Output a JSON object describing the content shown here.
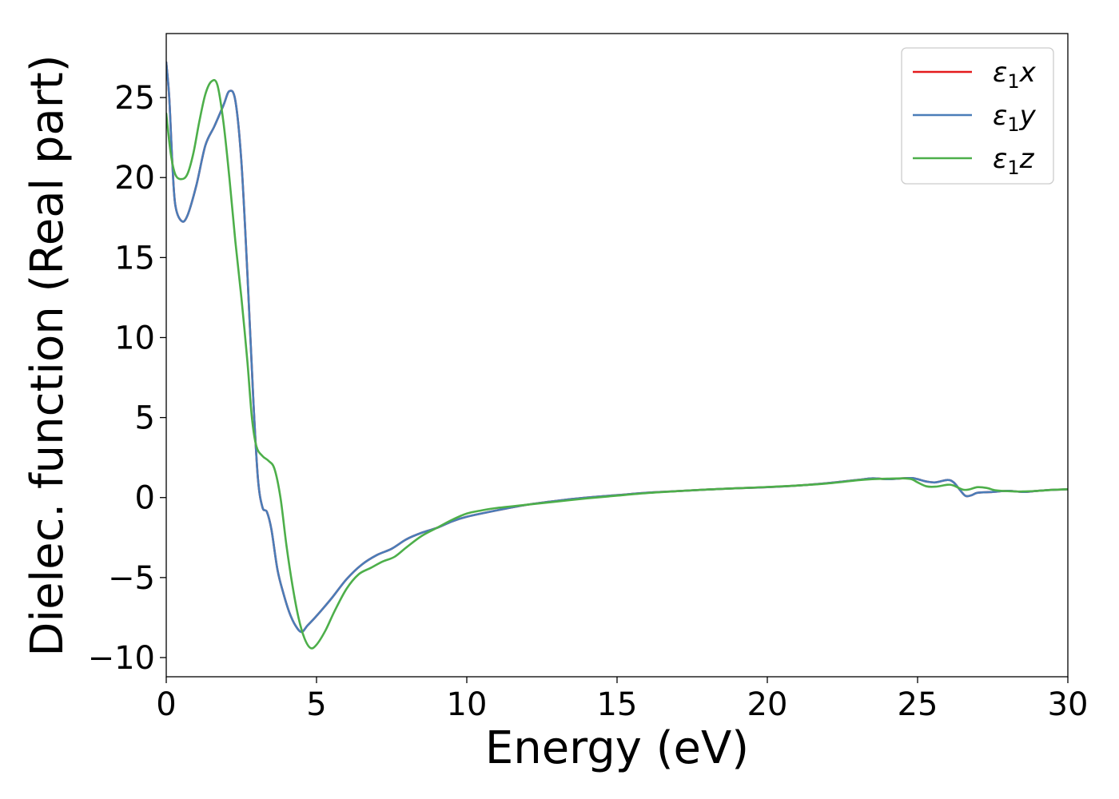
{
  "chart_data": {
    "type": "line",
    "xlabel": "Energy (eV)",
    "ylabel": "Dielec. function (Real part)",
    "xlim": [
      0,
      30
    ],
    "ylim": [
      -11.2,
      29.0
    ],
    "xticks": [
      {
        "value": 0,
        "label": "0"
      },
      {
        "value": 5,
        "label": "5"
      },
      {
        "value": 10,
        "label": "10"
      },
      {
        "value": 15,
        "label": "15"
      },
      {
        "value": 20,
        "label": "20"
      },
      {
        "value": 25,
        "label": "25"
      },
      {
        "value": 30,
        "label": "30"
      }
    ],
    "yticks": [
      {
        "value": -10,
        "label": "−10"
      },
      {
        "value": -5,
        "label": "−5"
      },
      {
        "value": 0,
        "label": "0"
      },
      {
        "value": 5,
        "label": "5"
      },
      {
        "value": 10,
        "label": "10"
      },
      {
        "value": 15,
        "label": "15"
      },
      {
        "value": 20,
        "label": "20"
      },
      {
        "value": 25,
        "label": "25"
      }
    ],
    "grid": false,
    "legend": "top-right",
    "series": [
      {
        "name": "ε₁x",
        "legend_base": "ε",
        "legend_sub": "1",
        "legend_suffix": "x",
        "color": "#e41a1c",
        "points": [
          [
            0,
            27.2
          ],
          [
            0.1,
            25
          ],
          [
            0.2,
            21
          ],
          [
            0.3,
            18.3
          ],
          [
            0.5,
            17.3
          ],
          [
            0.7,
            17.6
          ],
          [
            1.0,
            19.5
          ],
          [
            1.3,
            22
          ],
          [
            1.6,
            23.2
          ],
          [
            1.9,
            24.5
          ],
          [
            2.1,
            25.4
          ],
          [
            2.3,
            24.8
          ],
          [
            2.5,
            21
          ],
          [
            2.7,
            14
          ],
          [
            2.9,
            6
          ],
          [
            3.05,
            1.2
          ],
          [
            3.2,
            -0.6
          ],
          [
            3.35,
            -0.9
          ],
          [
            3.5,
            -2
          ],
          [
            3.7,
            -4.5
          ],
          [
            3.9,
            -6
          ],
          [
            4.1,
            -7.2
          ],
          [
            4.3,
            -8
          ],
          [
            4.5,
            -8.4
          ],
          [
            4.7,
            -8
          ],
          [
            5.0,
            -7.4
          ],
          [
            5.5,
            -6.3
          ],
          [
            6.0,
            -5.1
          ],
          [
            6.5,
            -4.2
          ],
          [
            7.0,
            -3.6
          ],
          [
            7.5,
            -3.2
          ],
          [
            8.0,
            -2.6
          ],
          [
            8.5,
            -2.2
          ],
          [
            9.0,
            -1.9
          ],
          [
            9.5,
            -1.5
          ],
          [
            10,
            -1.2
          ],
          [
            11,
            -0.8
          ],
          [
            12,
            -0.45
          ],
          [
            13,
            -0.2
          ],
          [
            14,
            0
          ],
          [
            15,
            0.15
          ],
          [
            16,
            0.3
          ],
          [
            17,
            0.4
          ],
          [
            18,
            0.5
          ],
          [
            19,
            0.58
          ],
          [
            20,
            0.65
          ],
          [
            21,
            0.75
          ],
          [
            22,
            0.9
          ],
          [
            23,
            1.1
          ],
          [
            23.5,
            1.2
          ],
          [
            24,
            1.15
          ],
          [
            24.5,
            1.2
          ],
          [
            24.8,
            1.22
          ],
          [
            25.0,
            1.15
          ],
          [
            25.3,
            1.0
          ],
          [
            25.6,
            0.95
          ],
          [
            26.0,
            1.1
          ],
          [
            26.2,
            0.95
          ],
          [
            26.4,
            0.5
          ],
          [
            26.6,
            0.1
          ],
          [
            26.8,
            0.15
          ],
          [
            27.0,
            0.3
          ],
          [
            27.5,
            0.35
          ],
          [
            28.0,
            0.42
          ],
          [
            28.5,
            0.35
          ],
          [
            29,
            0.42
          ],
          [
            29.5,
            0.48
          ],
          [
            30,
            0.52
          ]
        ]
      },
      {
        "name": "ε₁y",
        "legend_base": "ε",
        "legend_sub": "1",
        "legend_suffix": "y",
        "color": "#4a7db8",
        "points": [
          [
            0,
            27.2
          ],
          [
            0.1,
            25
          ],
          [
            0.2,
            21
          ],
          [
            0.3,
            18.3
          ],
          [
            0.5,
            17.3
          ],
          [
            0.7,
            17.6
          ],
          [
            1.0,
            19.5
          ],
          [
            1.3,
            22
          ],
          [
            1.6,
            23.2
          ],
          [
            1.9,
            24.5
          ],
          [
            2.1,
            25.4
          ],
          [
            2.3,
            24.8
          ],
          [
            2.5,
            21
          ],
          [
            2.7,
            14
          ],
          [
            2.9,
            6
          ],
          [
            3.05,
            1.2
          ],
          [
            3.2,
            -0.6
          ],
          [
            3.35,
            -0.9
          ],
          [
            3.5,
            -2
          ],
          [
            3.7,
            -4.5
          ],
          [
            3.9,
            -6
          ],
          [
            4.1,
            -7.2
          ],
          [
            4.3,
            -8
          ],
          [
            4.5,
            -8.4
          ],
          [
            4.7,
            -8
          ],
          [
            5.0,
            -7.4
          ],
          [
            5.5,
            -6.3
          ],
          [
            6.0,
            -5.1
          ],
          [
            6.5,
            -4.2
          ],
          [
            7.0,
            -3.6
          ],
          [
            7.5,
            -3.2
          ],
          [
            8.0,
            -2.6
          ],
          [
            8.5,
            -2.2
          ],
          [
            9.0,
            -1.9
          ],
          [
            9.5,
            -1.5
          ],
          [
            10,
            -1.2
          ],
          [
            11,
            -0.8
          ],
          [
            12,
            -0.45
          ],
          [
            13,
            -0.2
          ],
          [
            14,
            0
          ],
          [
            15,
            0.15
          ],
          [
            16,
            0.3
          ],
          [
            17,
            0.4
          ],
          [
            18,
            0.5
          ],
          [
            19,
            0.58
          ],
          [
            20,
            0.65
          ],
          [
            21,
            0.75
          ],
          [
            22,
            0.9
          ],
          [
            23,
            1.1
          ],
          [
            23.5,
            1.2
          ],
          [
            24,
            1.15
          ],
          [
            24.5,
            1.2
          ],
          [
            24.8,
            1.22
          ],
          [
            25.0,
            1.15
          ],
          [
            25.3,
            1.0
          ],
          [
            25.6,
            0.95
          ],
          [
            26.0,
            1.1
          ],
          [
            26.2,
            0.95
          ],
          [
            26.4,
            0.5
          ],
          [
            26.6,
            0.1
          ],
          [
            26.8,
            0.15
          ],
          [
            27.0,
            0.3
          ],
          [
            27.5,
            0.35
          ],
          [
            28.0,
            0.42
          ],
          [
            28.5,
            0.35
          ],
          [
            29,
            0.42
          ],
          [
            29.5,
            0.48
          ],
          [
            30,
            0.52
          ]
        ]
      },
      {
        "name": "ε₁z",
        "legend_base": "ε",
        "legend_sub": "1",
        "legend_suffix": "z",
        "color": "#4daf4a",
        "points": [
          [
            0,
            24
          ],
          [
            0.15,
            21.5
          ],
          [
            0.3,
            20.2
          ],
          [
            0.5,
            19.9
          ],
          [
            0.7,
            20.2
          ],
          [
            0.9,
            21.5
          ],
          [
            1.1,
            23.5
          ],
          [
            1.3,
            25.2
          ],
          [
            1.5,
            26
          ],
          [
            1.7,
            25.8
          ],
          [
            1.9,
            23.5
          ],
          [
            2.1,
            20
          ],
          [
            2.3,
            16
          ],
          [
            2.5,
            12.5
          ],
          [
            2.7,
            8.5
          ],
          [
            2.85,
            5
          ],
          [
            3.0,
            3.2
          ],
          [
            3.2,
            2.6
          ],
          [
            3.4,
            2.3
          ],
          [
            3.6,
            1.8
          ],
          [
            3.8,
            0
          ],
          [
            4.0,
            -3
          ],
          [
            4.2,
            -5.5
          ],
          [
            4.4,
            -7.5
          ],
          [
            4.6,
            -8.8
          ],
          [
            4.8,
            -9.4
          ],
          [
            5.0,
            -9.2
          ],
          [
            5.3,
            -8.3
          ],
          [
            5.6,
            -7.1
          ],
          [
            6.0,
            -5.7
          ],
          [
            6.4,
            -4.8
          ],
          [
            6.8,
            -4.4
          ],
          [
            7.2,
            -4
          ],
          [
            7.6,
            -3.7
          ],
          [
            8.0,
            -3.1
          ],
          [
            8.5,
            -2.4
          ],
          [
            9.0,
            -1.9
          ],
          [
            9.5,
            -1.4
          ],
          [
            10,
            -1.0
          ],
          [
            10.5,
            -0.8
          ],
          [
            11,
            -0.65
          ],
          [
            12,
            -0.45
          ],
          [
            13,
            -0.25
          ],
          [
            14,
            -0.05
          ],
          [
            15,
            0.12
          ],
          [
            16,
            0.28
          ],
          [
            17,
            0.4
          ],
          [
            18,
            0.5
          ],
          [
            19,
            0.58
          ],
          [
            20,
            0.66
          ],
          [
            21,
            0.75
          ],
          [
            22,
            0.88
          ],
          [
            23,
            1.08
          ],
          [
            23.5,
            1.15
          ],
          [
            24,
            1.18
          ],
          [
            24.5,
            1.2
          ],
          [
            24.8,
            1.15
          ],
          [
            25.0,
            0.95
          ],
          [
            25.3,
            0.7
          ],
          [
            25.6,
            0.68
          ],
          [
            26.0,
            0.8
          ],
          [
            26.2,
            0.75
          ],
          [
            26.5,
            0.5
          ],
          [
            26.7,
            0.5
          ],
          [
            27.0,
            0.65
          ],
          [
            27.3,
            0.6
          ],
          [
            27.6,
            0.45
          ],
          [
            28.0,
            0.4
          ],
          [
            28.5,
            0.38
          ],
          [
            29,
            0.42
          ],
          [
            29.5,
            0.48
          ],
          [
            30,
            0.52
          ]
        ]
      }
    ]
  }
}
